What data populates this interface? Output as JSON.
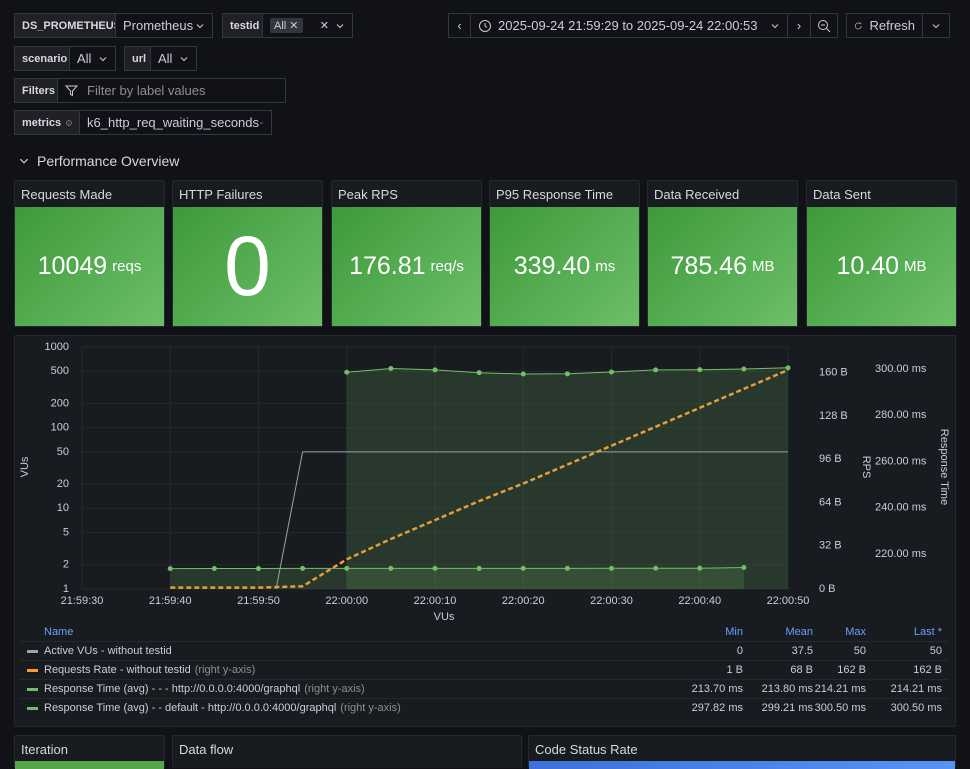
{
  "variables": {
    "datasource": {
      "label": "DS_PROMETHEUS",
      "value": "Prometheus"
    },
    "testid": {
      "label": "testid",
      "value": "All"
    },
    "scenario": {
      "label": "scenario",
      "value": "All"
    },
    "url": {
      "label": "url",
      "value": "All"
    },
    "filters": {
      "label": "Filters",
      "placeholder": "Filter by label values"
    },
    "metrics": {
      "label": "metrics",
      "value": "k6_http_req_waiting_seconds"
    }
  },
  "toolbar": {
    "time_range": "2025-09-24 21:59:29 to 2025-09-24 22:00:53",
    "refresh": "Refresh"
  },
  "section": "Performance Overview",
  "stats": [
    {
      "title": "Requests Made",
      "value": "10049",
      "unit": "reqs"
    },
    {
      "title": "HTTP Failures",
      "value": "0",
      "unit": null
    },
    {
      "title": "Peak RPS",
      "value": "176.81",
      "unit": "req/s"
    },
    {
      "title": "P95 Response Time",
      "value": "339.40",
      "unit": "ms"
    },
    {
      "title": "Data Received",
      "value": "785.46",
      "unit": "MB"
    },
    {
      "title": "Data Sent",
      "value": "10.40",
      "unit": "MB"
    }
  ],
  "chart_data": {
    "type": "line",
    "xlabel": "VUs",
    "ylabel": "VUs",
    "y2label": "RPS",
    "y3label": "Response Time",
    "grid": true,
    "xlim": [
      "21:59:30",
      "22:00:50"
    ],
    "xticks": [
      "21:59:30",
      "21:59:40",
      "21:59:50",
      "22:00:00",
      "22:00:10",
      "22:00:20",
      "22:00:30",
      "22:00:40",
      "22:00:50"
    ],
    "yscale": "log",
    "ylim": [
      1,
      1000
    ],
    "yticks": [
      1,
      2,
      5,
      10,
      20,
      50,
      100,
      200,
      500,
      1000
    ],
    "y2lim": [
      0,
      179
    ],
    "y2ticks": [
      {
        "value": 0,
        "label": "0 B"
      },
      {
        "value": 32,
        "label": "32 B"
      },
      {
        "value": 64,
        "label": "64 B"
      },
      {
        "value": 96,
        "label": "96 B"
      },
      {
        "value": 128,
        "label": "128 B"
      },
      {
        "value": 160,
        "label": "160 B"
      }
    ],
    "y3lim": [
      204.9,
      309.5
    ],
    "y3ticks": [
      {
        "value": 220,
        "label": "220.00 ms"
      },
      {
        "value": 240,
        "label": "240.00 ms"
      },
      {
        "value": 260,
        "label": "260.00 ms"
      },
      {
        "value": 280,
        "label": "280.00 ms"
      },
      {
        "value": 300,
        "label": "300.00 ms"
      }
    ],
    "series": [
      {
        "name": "Active VUs - without testid",
        "color": "#9da1a8",
        "x": [
          "21:59:52",
          "21:59:55",
          "22:00:50"
        ],
        "values": [
          1,
          50,
          50
        ]
      },
      {
        "name": "Requests Rate - without testid",
        "color": "#ff9830",
        "axis": "y2",
        "dash": true,
        "x": [
          "21:59:40",
          "21:59:45",
          "21:59:50",
          "21:59:55",
          "22:00:00",
          "22:00:05",
          "22:00:10",
          "22:00:15",
          "22:00:20",
          "22:00:25",
          "22:00:30",
          "22:00:35",
          "22:00:40",
          "22:00:45",
          "22:00:50"
        ],
        "values": [
          1,
          1,
          1,
          2,
          22,
          37,
          51,
          65,
          78,
          92,
          106,
          120,
          134,
          148,
          162
        ]
      },
      {
        "name": "Response Time (avg) - - - http://0.0.0.0:4000/graphql",
        "color": "#73bf69",
        "axis": "y3",
        "points": true,
        "fill": true,
        "x": [
          "21:59:40",
          "21:59:45",
          "21:59:50",
          "21:59:55",
          "22:00:00",
          "22:00:05",
          "22:00:10",
          "22:00:15",
          "22:00:20",
          "22:00:25",
          "22:00:30",
          "22:00:35",
          "22:00:40",
          "22:00:45"
        ],
        "values": [
          213.7,
          213.75,
          213.78,
          213.8,
          213.8,
          213.82,
          213.8,
          213.79,
          213.81,
          213.8,
          213.83,
          213.85,
          213.9,
          214.21
        ]
      },
      {
        "name": "Response Time (avg) - - default - http://0.0.0.0:4000/graphql",
        "color": "#73bf69",
        "axis": "y3",
        "points": true,
        "fill": true,
        "x": [
          "22:00:00",
          "22:00:05",
          "22:00:10",
          "22:00:15",
          "22:00:20",
          "22:00:25",
          "22:00:30",
          "22:00:35",
          "22:00:40",
          "22:00:45",
          "22:00:50"
        ],
        "values": [
          298.6,
          300.2,
          299.6,
          298.4,
          297.82,
          297.9,
          298.7,
          299.6,
          299.7,
          300.0,
          300.5
        ]
      }
    ]
  },
  "legend_table": {
    "columns": [
      "Name",
      "Min",
      "Mean",
      "Max",
      "Last *"
    ],
    "axis_note": "(right y-axis)",
    "rows": [
      [
        "0",
        "37.5",
        "50",
        "50"
      ],
      [
        "1 B",
        "68 B",
        "162 B",
        "162 B"
      ],
      [
        "213.70 ms",
        "213.80 ms",
        "214.21 ms",
        "214.21 ms"
      ],
      [
        "297.82 ms",
        "299.21 ms",
        "300.50 ms",
        "300.50 ms"
      ]
    ]
  },
  "panels": [
    "Iteration",
    "Data flow",
    "Code Status Rate"
  ]
}
